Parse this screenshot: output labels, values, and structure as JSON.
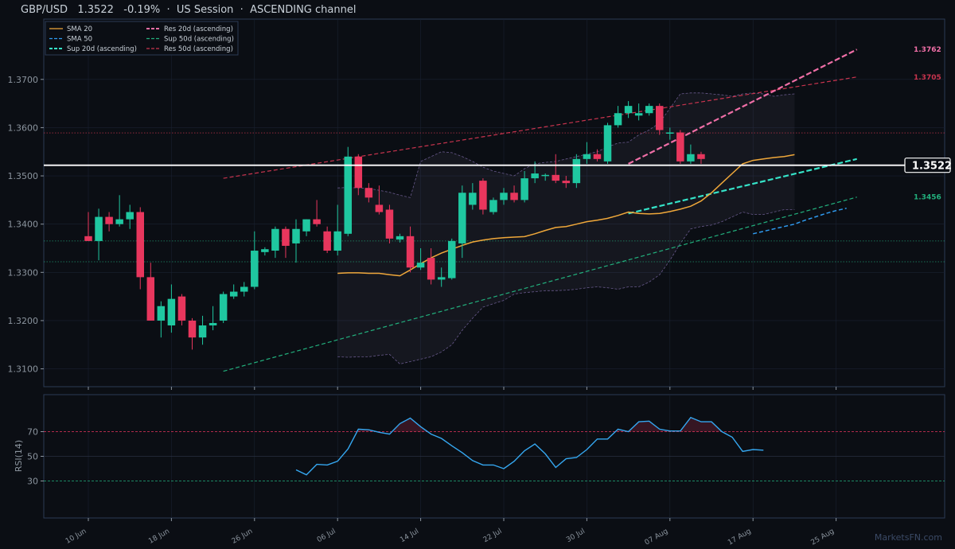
{
  "title": "GBP/USD   1.3522   -0.19%  ·  US Session  ·  ASCENDING channel",
  "watermark": "MarketsFN.com",
  "colors": {
    "bg": "#0b0e14",
    "panel_border": "#2b3b55",
    "grid": "#1a2130",
    "up": "#1fc7a0",
    "down": "#e8365d",
    "sma20": "#f0a83a",
    "sma50": "#2f9bf0",
    "res20": "#f06fa7",
    "res50": "#c9344e",
    "sup20": "#35e3c8",
    "sup50": "#22b07d",
    "rsi": "#35a7f0",
    "rsi_ob": "#e8365d",
    "rsi_os": "#22b07d",
    "price_line": "#ffffff"
  },
  "legend": [
    {
      "label": "SMA 20",
      "color": "#f0a83a",
      "style": "solid"
    },
    {
      "label": "SMA 50",
      "color": "#2f9bf0",
      "style": "dashed"
    },
    {
      "label": "Sup 20d (ascending)",
      "color": "#35e3c8",
      "style": "dashed-bold"
    },
    {
      "label": "Res 20d (ascending)",
      "color": "#f06fa7",
      "style": "dashed-bold"
    },
    {
      "label": "Sup 50d (ascending)",
      "color": "#22b07d",
      "style": "dashed"
    },
    {
      "label": "Res 50d (ascending)",
      "color": "#c9344e",
      "style": "dashed"
    }
  ],
  "chart_data": {
    "type": "candlestick",
    "x_ticks": [
      "10 Jun",
      "18 Jun",
      "26 Jun",
      "06 Jul",
      "14 Jul",
      "22 Jul",
      "30 Jul",
      "07 Aug",
      "17 Aug",
      "25 Aug"
    ],
    "x_tick_index": [
      0,
      8,
      16,
      24,
      32,
      40,
      48,
      56,
      64,
      72
    ],
    "y_ticks": [
      1.31,
      1.32,
      1.33,
      1.34,
      1.35,
      1.36,
      1.37
    ],
    "ylim": [
      1.3063,
      1.3825
    ],
    "ylabel_rsi": "RSI(14)",
    "rsi_ticks": [
      30,
      50,
      70
    ],
    "rsi_ylim": [
      0,
      100
    ],
    "current_price": 1.3522,
    "current_price_label": "1.3522",
    "level_labels": [
      {
        "text": "1.3762",
        "value": 1.3762,
        "color": "#f06fa7"
      },
      {
        "text": "1.3705",
        "value": 1.3705,
        "color": "#c9344e"
      },
      {
        "text": "1.3456",
        "value": 1.3456,
        "color": "#22b07d"
      }
    ],
    "hlines": [
      {
        "value": 1.3589,
        "color": "#c9344e"
      },
      {
        "value": 1.3365,
        "color": "#22b07d"
      },
      {
        "value": 1.3322,
        "color": "#22b07d"
      }
    ],
    "candles": [
      {
        "o": 1.3375,
        "h": 1.3425,
        "l": 1.3365,
        "c": 1.3365
      },
      {
        "o": 1.3365,
        "h": 1.3432,
        "l": 1.3325,
        "c": 1.3415
      },
      {
        "o": 1.3415,
        "h": 1.3425,
        "l": 1.3385,
        "c": 1.34
      },
      {
        "o": 1.34,
        "h": 1.346,
        "l": 1.3395,
        "c": 1.341
      },
      {
        "o": 1.341,
        "h": 1.344,
        "l": 1.339,
        "c": 1.3425
      },
      {
        "o": 1.3425,
        "h": 1.3435,
        "l": 1.3265,
        "c": 1.329
      },
      {
        "o": 1.329,
        "h": 1.332,
        "l": 1.32,
        "c": 1.32
      },
      {
        "o": 1.32,
        "h": 1.324,
        "l": 1.3165,
        "c": 1.323
      },
      {
        "o": 1.319,
        "h": 1.3275,
        "l": 1.3175,
        "c": 1.3245
      },
      {
        "o": 1.325,
        "h": 1.3255,
        "l": 1.319,
        "c": 1.32
      },
      {
        "o": 1.32,
        "h": 1.3205,
        "l": 1.314,
        "c": 1.3165
      },
      {
        "o": 1.3165,
        "h": 1.321,
        "l": 1.315,
        "c": 1.319
      },
      {
        "o": 1.319,
        "h": 1.323,
        "l": 1.318,
        "c": 1.3195
      },
      {
        "o": 1.32,
        "h": 1.326,
        "l": 1.3195,
        "c": 1.3255
      },
      {
        "o": 1.325,
        "h": 1.3275,
        "l": 1.3245,
        "c": 1.326
      },
      {
        "o": 1.326,
        "h": 1.328,
        "l": 1.325,
        "c": 1.327
      },
      {
        "o": 1.327,
        "h": 1.3385,
        "l": 1.3265,
        "c": 1.3345
      },
      {
        "o": 1.3342,
        "h": 1.3352,
        "l": 1.3335,
        "c": 1.3348
      },
      {
        "o": 1.3345,
        "h": 1.3395,
        "l": 1.333,
        "c": 1.339
      },
      {
        "o": 1.339,
        "h": 1.3395,
        "l": 1.333,
        "c": 1.3355
      },
      {
        "o": 1.336,
        "h": 1.341,
        "l": 1.332,
        "c": 1.339
      },
      {
        "o": 1.3385,
        "h": 1.341,
        "l": 1.3375,
        "c": 1.341
      },
      {
        "o": 1.341,
        "h": 1.345,
        "l": 1.3395,
        "c": 1.34
      },
      {
        "o": 1.3385,
        "h": 1.3395,
        "l": 1.334,
        "c": 1.3345
      },
      {
        "o": 1.3345,
        "h": 1.344,
        "l": 1.3335,
        "c": 1.3385
      },
      {
        "o": 1.338,
        "h": 1.356,
        "l": 1.3375,
        "c": 1.354
      },
      {
        "o": 1.354,
        "h": 1.3545,
        "l": 1.346,
        "c": 1.3475
      },
      {
        "o": 1.3475,
        "h": 1.3485,
        "l": 1.3445,
        "c": 1.3455
      },
      {
        "o": 1.344,
        "h": 1.348,
        "l": 1.342,
        "c": 1.3425
      },
      {
        "o": 1.343,
        "h": 1.344,
        "l": 1.336,
        "c": 1.337
      },
      {
        "o": 1.3368,
        "h": 1.338,
        "l": 1.3362,
        "c": 1.3375
      },
      {
        "o": 1.3375,
        "h": 1.3395,
        "l": 1.33,
        "c": 1.331
      },
      {
        "o": 1.331,
        "h": 1.335,
        "l": 1.3305,
        "c": 1.332
      },
      {
        "o": 1.333,
        "h": 1.335,
        "l": 1.3275,
        "c": 1.3285
      },
      {
        "o": 1.3285,
        "h": 1.331,
        "l": 1.327,
        "c": 1.329
      },
      {
        "o": 1.3288,
        "h": 1.337,
        "l": 1.3285,
        "c": 1.3365
      },
      {
        "o": 1.336,
        "h": 1.348,
        "l": 1.333,
        "c": 1.3465
      },
      {
        "o": 1.344,
        "h": 1.3485,
        "l": 1.343,
        "c": 1.3465
      },
      {
        "o": 1.349,
        "h": 1.3495,
        "l": 1.342,
        "c": 1.343
      },
      {
        "o": 1.3425,
        "h": 1.3455,
        "l": 1.342,
        "c": 1.345
      },
      {
        "o": 1.345,
        "h": 1.3475,
        "l": 1.344,
        "c": 1.3465
      },
      {
        "o": 1.3465,
        "h": 1.348,
        "l": 1.3445,
        "c": 1.345
      },
      {
        "o": 1.345,
        "h": 1.351,
        "l": 1.3445,
        "c": 1.3495
      },
      {
        "o": 1.3495,
        "h": 1.353,
        "l": 1.3485,
        "c": 1.3505
      },
      {
        "o": 1.35,
        "h": 1.3505,
        "l": 1.349,
        "c": 1.3502
      },
      {
        "o": 1.3502,
        "h": 1.3545,
        "l": 1.3485,
        "c": 1.349
      },
      {
        "o": 1.349,
        "h": 1.35,
        "l": 1.3475,
        "c": 1.3485
      },
      {
        "o": 1.3485,
        "h": 1.3545,
        "l": 1.3475,
        "c": 1.3535
      },
      {
        "o": 1.3535,
        "h": 1.357,
        "l": 1.3525,
        "c": 1.3545
      },
      {
        "o": 1.3545,
        "h": 1.3555,
        "l": 1.353,
        "c": 1.3535
      },
      {
        "o": 1.353,
        "h": 1.361,
        "l": 1.3525,
        "c": 1.3605
      },
      {
        "o": 1.3605,
        "h": 1.3645,
        "l": 1.36,
        "c": 1.363
      },
      {
        "o": 1.363,
        "h": 1.3655,
        "l": 1.362,
        "c": 1.3645
      },
      {
        "o": 1.3625,
        "h": 1.365,
        "l": 1.3615,
        "c": 1.363
      },
      {
        "o": 1.363,
        "h": 1.365,
        "l": 1.3625,
        "c": 1.3645
      },
      {
        "o": 1.3645,
        "h": 1.365,
        "l": 1.3585,
        "c": 1.3595
      },
      {
        "o": 1.359,
        "h": 1.36,
        "l": 1.3575,
        "c": 1.359
      },
      {
        "o": 1.359,
        "h": 1.3595,
        "l": 1.3525,
        "c": 1.353
      },
      {
        "o": 1.353,
        "h": 1.3565,
        "l": 1.3525,
        "c": 1.3545
      },
      {
        "o": 1.3545,
        "h": 1.355,
        "l": 1.3525,
        "c": 1.3535
      }
    ],
    "sma20_start": 24,
    "sma20": [
      1.3298,
      1.3299,
      1.3299,
      1.3298,
      1.3298,
      1.3295,
      1.3293,
      1.3305,
      1.3318,
      1.333,
      1.334,
      1.3348,
      1.3356,
      1.3363,
      1.3367,
      1.337,
      1.3372,
      1.3373,
      1.3374,
      1.338,
      1.3387,
      1.3393,
      1.3395,
      1.34,
      1.3405,
      1.3408,
      1.3412,
      1.3418,
      1.3425,
      1.3422,
      1.3421,
      1.3422,
      1.3426,
      1.3431,
      1.3437,
      1.3448,
      1.3465,
      1.3485,
      1.3505,
      1.3525,
      1.3532,
      1.3535,
      1.3538,
      1.354,
      1.3544
    ],
    "sma50_start": 64,
    "sma50": [
      1.338,
      1.3385,
      1.339,
      1.3395,
      1.34,
      1.3408,
      1.3415,
      1.3422,
      1.3428,
      1.3433
    ],
    "bb_start": 24,
    "bb_upper": [
      1.3475,
      1.3476,
      1.3475,
      1.3474,
      1.347,
      1.3466,
      1.346,
      1.3455,
      1.353,
      1.354,
      1.355,
      1.3548,
      1.354,
      1.353,
      1.3518,
      1.351,
      1.3505,
      1.35,
      1.3515,
      1.3525,
      1.3528,
      1.353,
      1.3535,
      1.354,
      1.3545,
      1.355,
      1.356,
      1.3568,
      1.357,
      1.3585,
      1.3595,
      1.361,
      1.364,
      1.367,
      1.3672,
      1.3672,
      1.367,
      1.3668,
      1.3665,
      1.367,
      1.3672,
      1.367,
      1.3665,
      1.3668,
      1.367
    ],
    "bb_lower": [
      1.3125,
      1.3124,
      1.3125,
      1.3125,
      1.3128,
      1.313,
      1.311,
      1.3115,
      1.312,
      1.3125,
      1.3135,
      1.315,
      1.318,
      1.3205,
      1.3228,
      1.3235,
      1.3242,
      1.3255,
      1.3258,
      1.326,
      1.3262,
      1.3262,
      1.3263,
      1.3265,
      1.3268,
      1.327,
      1.3268,
      1.3265,
      1.327,
      1.327,
      1.328,
      1.3295,
      1.3325,
      1.336,
      1.339,
      1.3395,
      1.3398,
      1.3405,
      1.3415,
      1.3425,
      1.342,
      1.342,
      1.3425,
      1.343,
      1.343
    ],
    "res20": {
      "from": [
        52,
        1.3525
      ],
      "to": [
        74,
        1.3762
      ]
    },
    "sup20": {
      "from": [
        52,
        1.3422
      ],
      "to": [
        74,
        1.3535
      ]
    },
    "res50": {
      "from": [
        13,
        1.3495
      ],
      "to": [
        74,
        1.3705
      ]
    },
    "sup50": {
      "from": [
        13,
        1.3095
      ],
      "to": [
        74,
        1.3456
      ]
    },
    "rsi_start": 20,
    "rsi": [
      39,
      35,
      43.5,
      43,
      46,
      56,
      72,
      71.5,
      69.5,
      68,
      76.5,
      81,
      74,
      68,
      64.5,
      58.5,
      53,
      46.5,
      43,
      43,
      40,
      46,
      54.5,
      60,
      52,
      41,
      48,
      49,
      55.5,
      64,
      64,
      72,
      70,
      78,
      78.5,
      72,
      70.5,
      70.5,
      81.5,
      78,
      78,
      70,
      65.5,
      54,
      55.5,
      55
    ]
  }
}
